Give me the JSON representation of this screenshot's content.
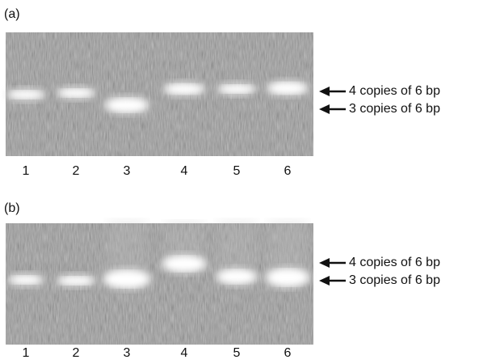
{
  "panels": [
    {
      "label": "(a)",
      "lanes": [
        "1",
        "2",
        "3",
        "4",
        "5",
        "6"
      ],
      "annotations": [
        "4 copies of 6 bp",
        "3 copies of 6 bp"
      ]
    },
    {
      "label": "(b)",
      "lanes": [
        "1",
        "2",
        "3",
        "4",
        "5",
        "6"
      ],
      "annotations": [
        "4 copies of 6 bp",
        "3 copies of 6 bp"
      ]
    }
  ]
}
